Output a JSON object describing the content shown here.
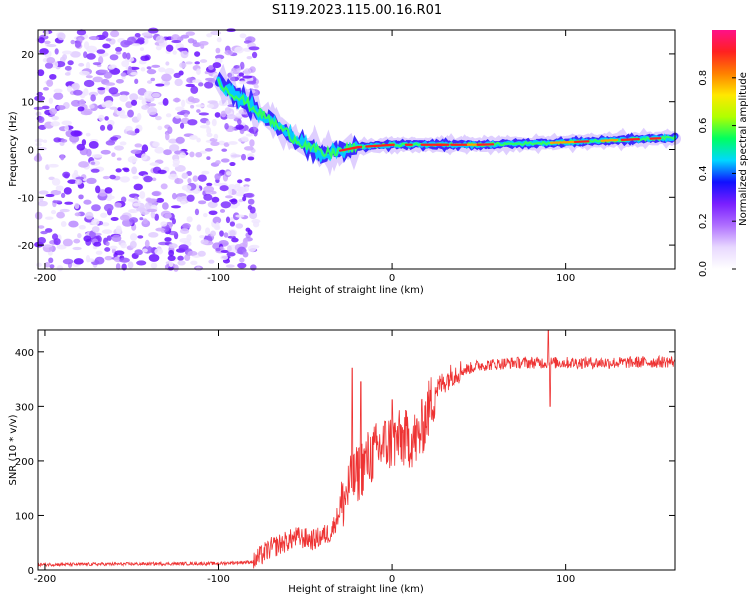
{
  "title": "S119.2023.115.00.16.R01",
  "chart_data": [
    {
      "type": "heatmap",
      "xlabel": "Height of straight line (km)",
      "ylabel": "Frequency (Hz)",
      "xlim": [
        -204,
        163
      ],
      "ylim": [
        -25,
        25
      ],
      "xticks": [
        -200,
        -100,
        0,
        100
      ],
      "yticks": [
        -20,
        -10,
        0,
        10,
        20
      ],
      "colorbar": {
        "label": "Normalized spectral amplitude",
        "range": [
          0.0,
          1.0
        ],
        "ticks": [
          0.0,
          0.2,
          0.4,
          0.6,
          0.8
        ],
        "colors": [
          "#ffffff",
          "#e8d8ff",
          "#b070ff",
          "#7a1fff",
          "#1010ff",
          "#00d8ff",
          "#00ff60",
          "#b0ff00",
          "#ffe800",
          "#ff8000",
          "#ff2020",
          "#ff1088"
        ]
      },
      "ridge": [
        {
          "x": -100,
          "freq": 14
        },
        {
          "x": -85,
          "freq": 10
        },
        {
          "x": -70,
          "freq": 6
        },
        {
          "x": -55,
          "freq": 2
        },
        {
          "x": -40,
          "freq": -1
        },
        {
          "x": -20,
          "freq": 0.5
        },
        {
          "x": 0,
          "freq": 1
        },
        {
          "x": 50,
          "freq": 1
        },
        {
          "x": 100,
          "freq": 1.5
        },
        {
          "x": 163,
          "freq": 2.5
        }
      ]
    },
    {
      "type": "line",
      "xlabel": "Height of straight line (km)",
      "ylabel": "SNR (10 * v/v)",
      "xlim": [
        -204,
        163
      ],
      "ylim": [
        0,
        440
      ],
      "xticks": [
        -200,
        -100,
        0,
        100
      ],
      "yticks": [
        0,
        100,
        200,
        300,
        400
      ],
      "color": "#ee3333",
      "profile": [
        {
          "x": -204,
          "y": 10
        },
        {
          "x": -100,
          "y": 12
        },
        {
          "x": -80,
          "y": 15
        },
        {
          "x": -70,
          "y": 40
        },
        {
          "x": -55,
          "y": 60
        },
        {
          "x": -45,
          "y": 55
        },
        {
          "x": -35,
          "y": 70
        },
        {
          "x": -25,
          "y": 150
        },
        {
          "x": -15,
          "y": 200
        },
        {
          "x": -5,
          "y": 230
        },
        {
          "x": 5,
          "y": 240
        },
        {
          "x": 15,
          "y": 240
        },
        {
          "x": 25,
          "y": 330
        },
        {
          "x": 35,
          "y": 360
        },
        {
          "x": 50,
          "y": 375
        },
        {
          "x": 70,
          "y": 380
        },
        {
          "x": 100,
          "y": 380
        },
        {
          "x": 130,
          "y": 380
        },
        {
          "x": 163,
          "y": 382
        }
      ],
      "spikes": [
        {
          "x": -23,
          "y": 370
        },
        {
          "x": -18,
          "y": 345
        },
        {
          "x": 0,
          "y": 312
        },
        {
          "x": 90,
          "y": 440
        },
        {
          "x": 91,
          "y": 300
        }
      ]
    }
  ]
}
